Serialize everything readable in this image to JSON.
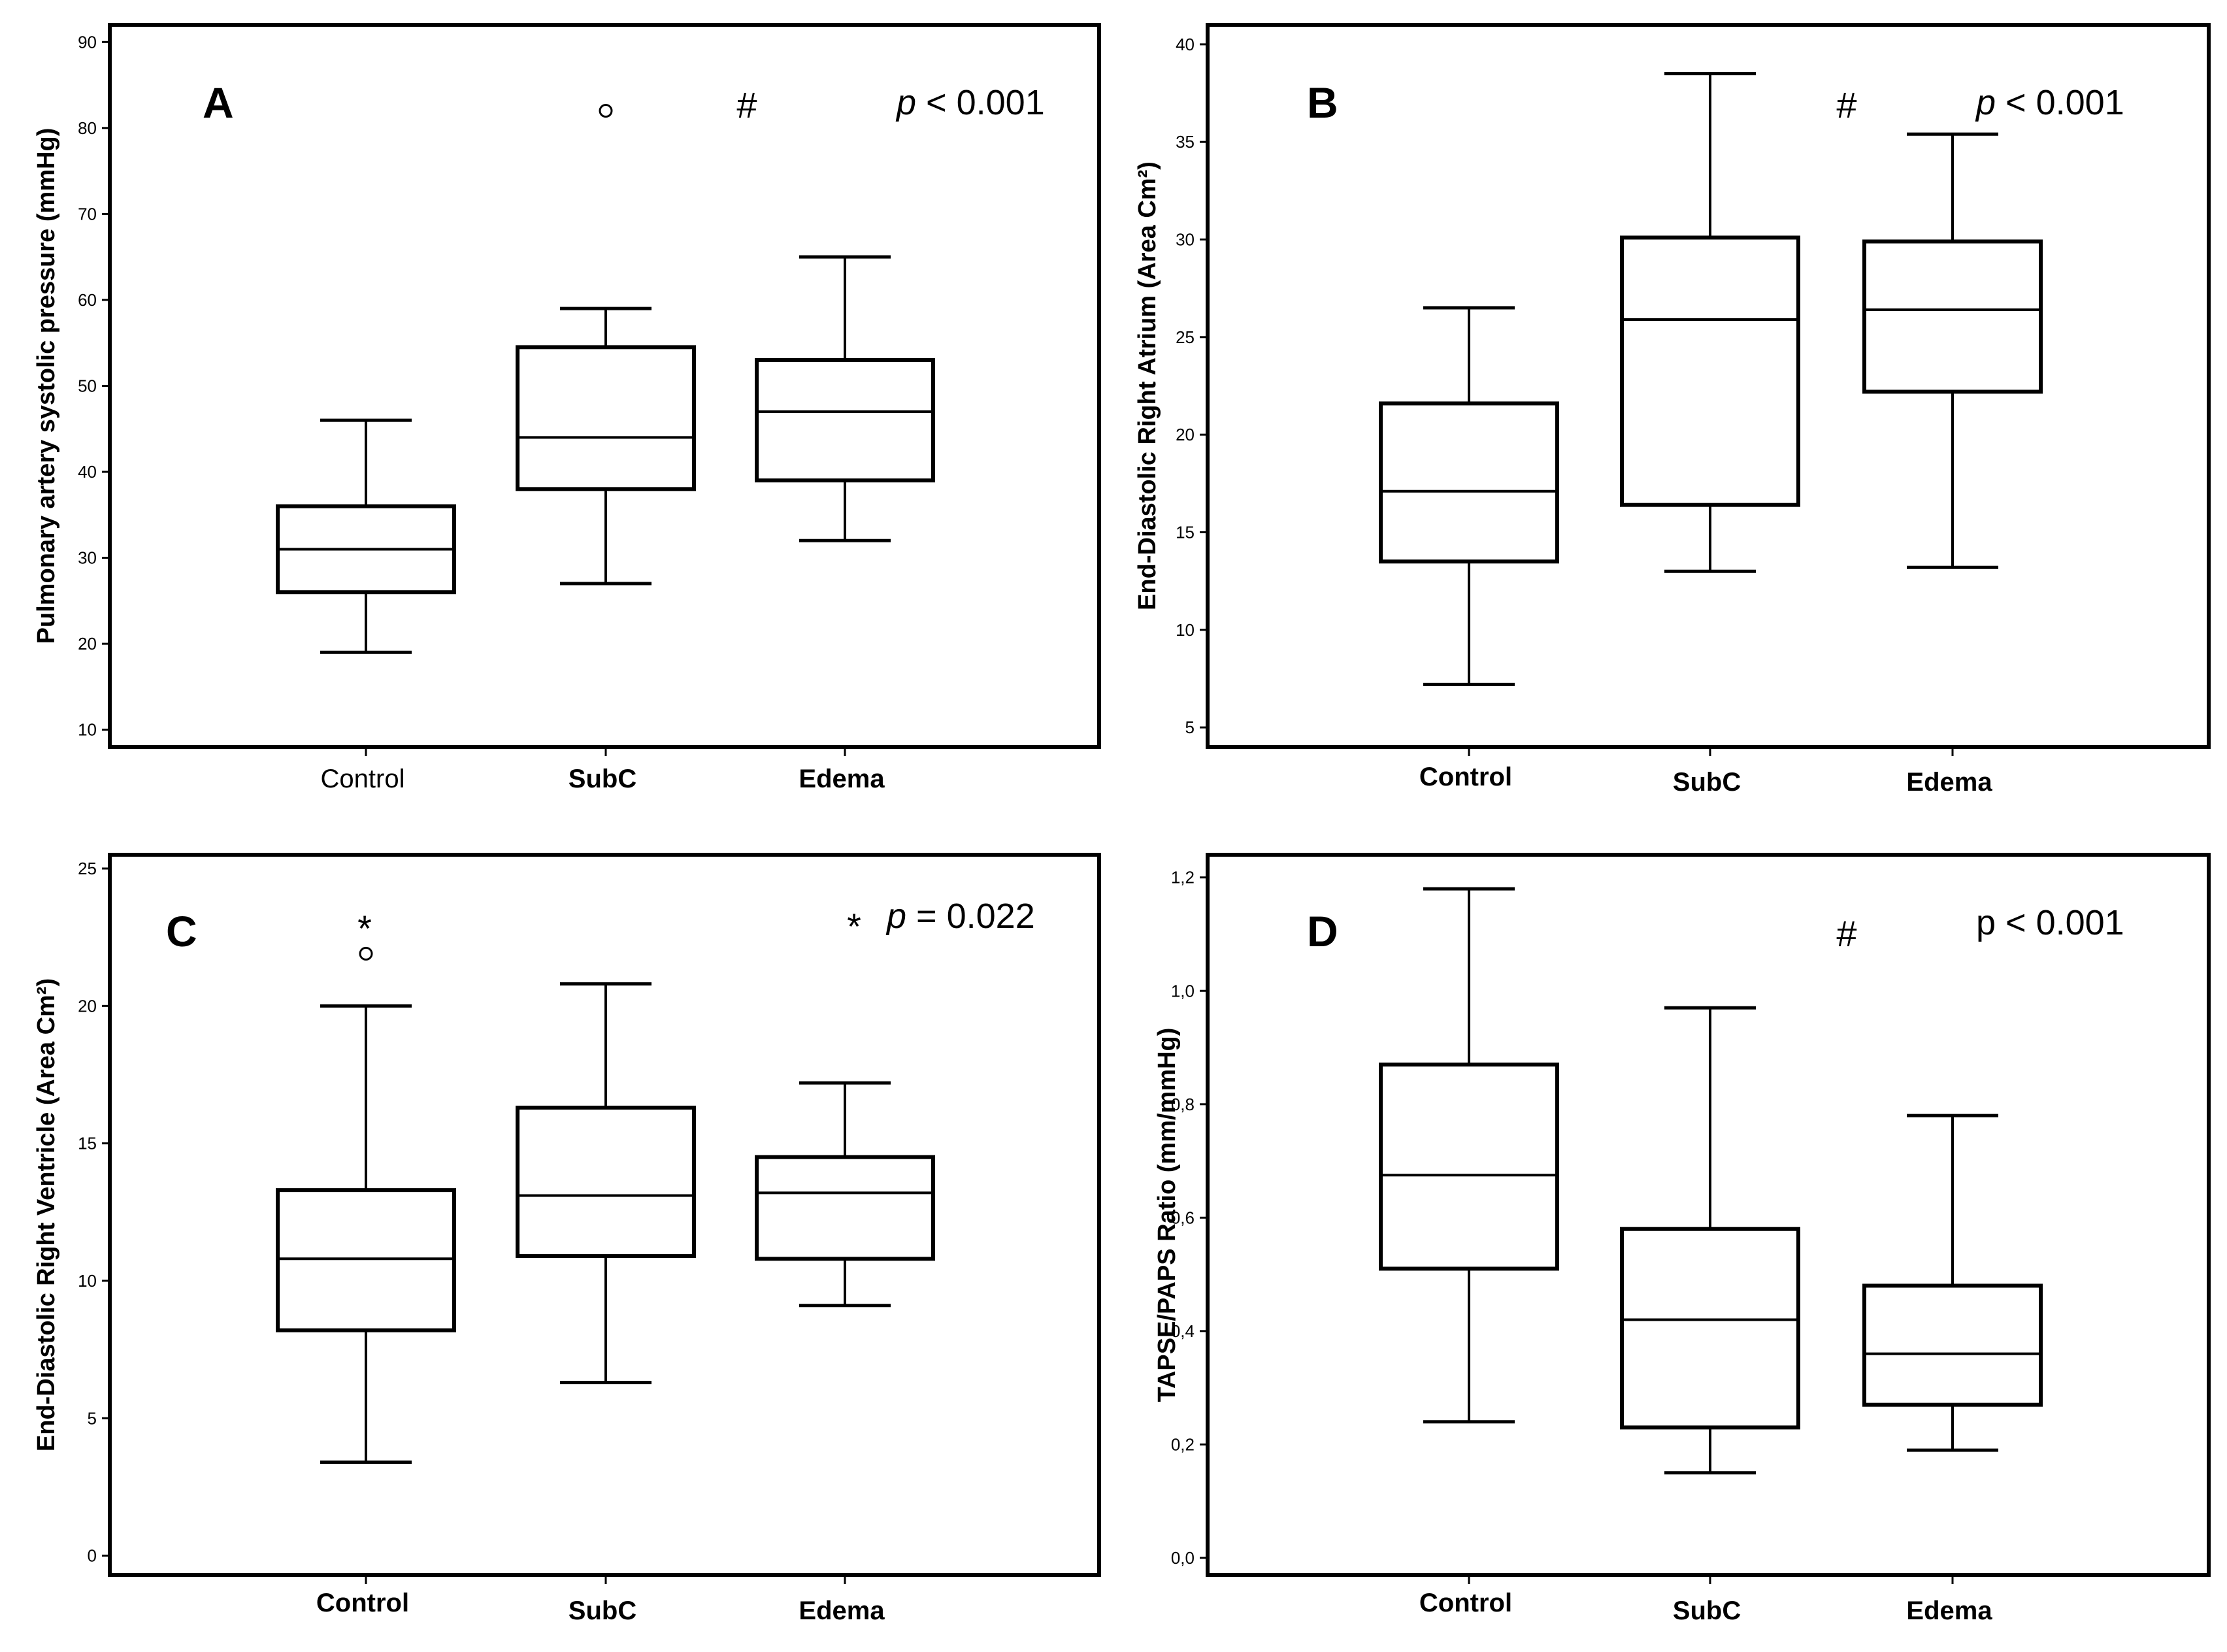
{
  "chart_data": [
    {
      "type": "boxplot",
      "panel": "A",
      "ylabel": "Pulmonary artery systolic pressure (mmHg)",
      "ylim": [
        8,
        92
      ],
      "yticks": [
        10,
        20,
        30,
        40,
        50,
        60,
        70,
        80,
        90
      ],
      "ytick_labels": [
        "10",
        "20",
        "30",
        "40",
        "50",
        "60",
        "70",
        "80",
        "90"
      ],
      "categories": [
        "Control",
        "SubC",
        "Edema"
      ],
      "category_bold": [
        false,
        true,
        true
      ],
      "boxes": [
        {
          "whisker_low": 19,
          "q1": 26,
          "median": 31,
          "q3": 36,
          "whisker_high": 46,
          "outliers": []
        },
        {
          "whisker_low": 27,
          "q1": 38,
          "median": 44,
          "q3": 54.5,
          "whisker_high": 59,
          "outliers": [
            82
          ]
        },
        {
          "whisker_low": 32,
          "q1": 39,
          "median": 47,
          "q3": 53,
          "whisker_high": 65,
          "outliers": []
        }
      ],
      "marker": "#",
      "p_prefix": "p",
      "p_rest": " < 0.001"
    },
    {
      "type": "boxplot",
      "panel": "B",
      "ylabel": "End-Diastolic Right Atrium (Area Cm²)",
      "ylim": [
        4,
        41
      ],
      "yticks": [
        5,
        10,
        15,
        20,
        25,
        30,
        35,
        40
      ],
      "ytick_labels": [
        "5",
        "10",
        "15",
        "20",
        "25",
        "30",
        "35",
        "40"
      ],
      "categories": [
        "Control",
        "SubC",
        "Edema"
      ],
      "category_bold": [
        true,
        true,
        true
      ],
      "boxes": [
        {
          "whisker_low": 7.2,
          "q1": 13.5,
          "median": 17.1,
          "q3": 21.6,
          "whisker_high": 26.5,
          "outliers": []
        },
        {
          "whisker_low": 13,
          "q1": 16.4,
          "median": 25.9,
          "q3": 30.1,
          "whisker_high": 38.5,
          "outliers": []
        },
        {
          "whisker_low": 13.2,
          "q1": 22.2,
          "median": 26.4,
          "q3": 29.9,
          "whisker_high": 35.4,
          "outliers": []
        }
      ],
      "marker": "#",
      "p_prefix": "p",
      "p_rest": " < 0.001"
    },
    {
      "type": "boxplot",
      "panel": "C",
      "ylabel": "End-Diastolic Right Ventricle (Area Cm²)",
      "ylim": [
        -0.7,
        25.5
      ],
      "yticks": [
        0,
        5,
        10,
        15,
        20,
        25
      ],
      "ytick_labels": [
        "0",
        "5",
        "10",
        "15",
        "20",
        "25"
      ],
      "categories": [
        "Control",
        "SubC",
        "Edema"
      ],
      "category_bold": [
        true,
        true,
        true
      ],
      "boxes": [
        {
          "whisker_low": 3.4,
          "q1": 8.2,
          "median": 10.8,
          "q3": 13.3,
          "whisker_high": 20,
          "outliers": [
            21.9
          ]
        },
        {
          "whisker_low": 6.3,
          "q1": 10.9,
          "median": 13.1,
          "q3": 16.3,
          "whisker_high": 20.8,
          "outliers": []
        },
        {
          "whisker_low": 9.1,
          "q1": 10.8,
          "median": 13.2,
          "q3": 14.5,
          "whisker_high": 17.2,
          "outliers": []
        }
      ],
      "star_marker": "*",
      "marker": "*",
      "p_prefix": "p",
      "p_rest": " = 0.022"
    },
    {
      "type": "boxplot",
      "panel": "D",
      "ylabel": "TAPSE/PAPS Ratio (mm/mmHg)",
      "ylim": [
        -0.03,
        1.24
      ],
      "yticks": [
        0,
        0.2,
        0.4,
        0.6,
        0.8,
        1.0,
        1.2
      ],
      "ytick_labels": [
        "0,0",
        "0,2",
        "0,4",
        "0,6",
        "0,8",
        "1,0",
        "1,2"
      ],
      "categories": [
        "Control",
        "SubC",
        "Edema"
      ],
      "category_bold": [
        true,
        true,
        true
      ],
      "boxes": [
        {
          "whisker_low": 0.24,
          "q1": 0.51,
          "median": 0.675,
          "q3": 0.87,
          "whisker_high": 1.18,
          "outliers": []
        },
        {
          "whisker_low": 0.15,
          "q1": 0.23,
          "median": 0.42,
          "q3": 0.58,
          "whisker_high": 0.97,
          "outliers": []
        },
        {
          "whisker_low": 0.19,
          "q1": 0.27,
          "median": 0.36,
          "q3": 0.48,
          "whisker_high": 0.78,
          "outliers": []
        }
      ],
      "marker": "#",
      "p_full": "p < 0.001"
    }
  ]
}
